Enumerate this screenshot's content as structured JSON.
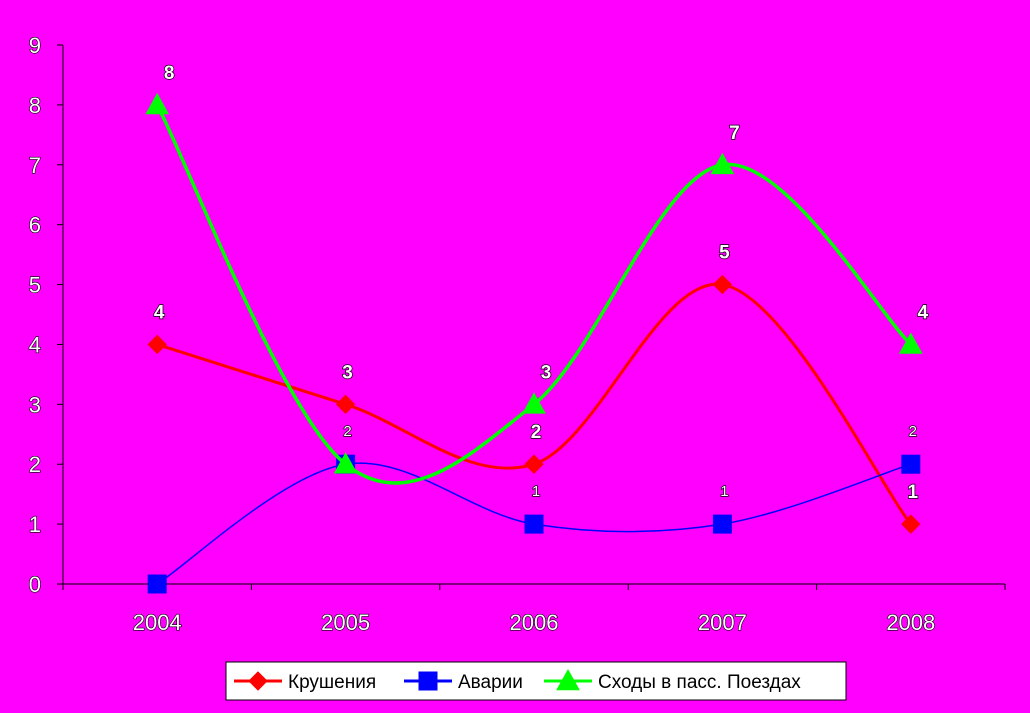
{
  "chart_data": {
    "type": "line",
    "smooth": true,
    "x": [
      "2004",
      "2005",
      "2006",
      "2007",
      "2008"
    ],
    "ylim": [
      0,
      9
    ],
    "yticks": [
      0,
      1,
      2,
      3,
      4,
      5,
      6,
      7,
      8,
      9
    ],
    "grid": false,
    "legend_position": "bottom",
    "background_color": "#ff00ff",
    "series": [
      {
        "name": "Крушения",
        "values": [
          4,
          3,
          2,
          5,
          1
        ],
        "color": "#ff0000",
        "marker": "diamond",
        "label_style": "bold"
      },
      {
        "name": "Аварии",
        "values": [
          0,
          2,
          1,
          1,
          2
        ],
        "color": "#0000ff",
        "marker": "square",
        "label_style": "small",
        "labels": [
          "",
          "2",
          "1",
          "1",
          "2"
        ]
      },
      {
        "name": "Сходы в пасс. Поездах",
        "values": [
          8,
          2,
          3,
          7,
          4
        ],
        "color": "#00ff00",
        "marker": "triangle",
        "label_style": "bold",
        "labels": [
          "8",
          "",
          "3",
          "7",
          "4"
        ]
      }
    ]
  }
}
